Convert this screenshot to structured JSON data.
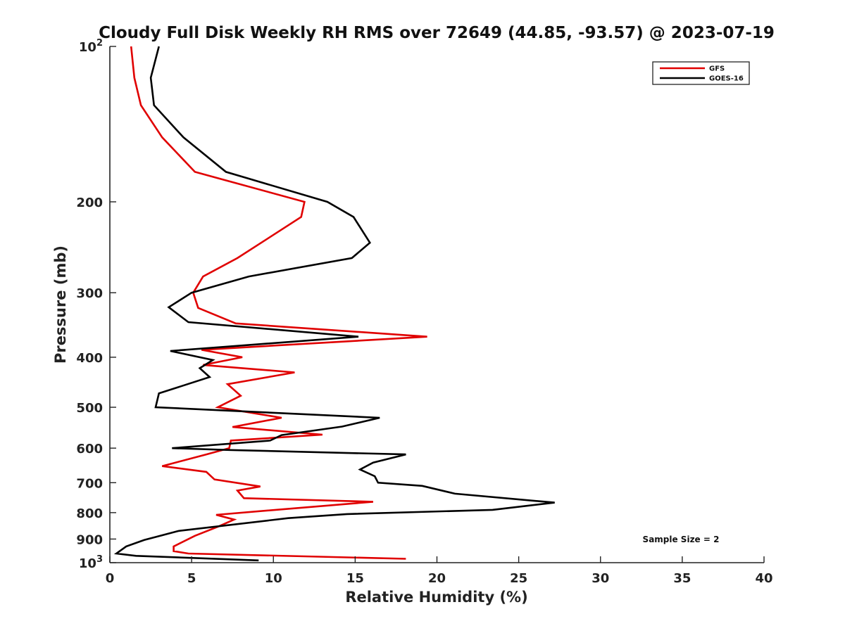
{
  "chart_data": {
    "type": "line",
    "title": "Cloudy Full Disk Weekly RH RMS over 72649 (44.85, -93.57) @ 2023-07-19",
    "xlabel": "Relative Humidity (%)",
    "ylabel": "Pressure (mb)",
    "xlim": [
      0,
      40
    ],
    "ylim": [
      100,
      1000
    ],
    "y_scale": "log",
    "y_inverted": true,
    "x_ticks": [
      "0",
      "5",
      "10",
      "15",
      "20",
      "25",
      "30",
      "35",
      "40"
    ],
    "x_tick_values": [
      0,
      5,
      10,
      15,
      20,
      25,
      30,
      35,
      40
    ],
    "y_ticks": [
      {
        "value": 100,
        "base": "10",
        "exp": "2"
      },
      {
        "value": 200,
        "label": "200"
      },
      {
        "value": 300,
        "label": "300"
      },
      {
        "value": 400,
        "label": "400"
      },
      {
        "value": 500,
        "label": "500"
      },
      {
        "value": 600,
        "label": "600"
      },
      {
        "value": 700,
        "label": "700"
      },
      {
        "value": 800,
        "label": "800"
      },
      {
        "value": 900,
        "label": "900"
      },
      {
        "value": 1000,
        "base": "10",
        "exp": "3"
      }
    ],
    "legend_position": "top-right",
    "grid": false,
    "annotation": "Sample Size = 2",
    "series": [
      {
        "name": "GFS",
        "color": "#e00000",
        "points": [
          [
            1.3,
            100
          ],
          [
            1.5,
            115
          ],
          [
            1.9,
            130
          ],
          [
            3.2,
            150
          ],
          [
            5.2,
            175
          ],
          [
            11.9,
            200
          ],
          [
            11.7,
            214
          ],
          [
            7.8,
            257
          ],
          [
            5.7,
            279
          ],
          [
            5.1,
            300
          ],
          [
            5.4,
            321
          ],
          [
            7.7,
            344
          ],
          [
            19.4,
            365
          ],
          [
            5.6,
            387
          ],
          [
            8.1,
            400
          ],
          [
            5.7,
            414
          ],
          [
            11.3,
            428
          ],
          [
            7.2,
            451
          ],
          [
            8.0,
            475
          ],
          [
            6.6,
            500
          ],
          [
            10.5,
            524
          ],
          [
            7.5,
            546
          ],
          [
            13.0,
            565
          ],
          [
            7.4,
            580
          ],
          [
            7.3,
            600
          ],
          [
            5.9,
            617
          ],
          [
            3.2,
            650
          ],
          [
            5.9,
            667
          ],
          [
            6.4,
            690
          ],
          [
            9.2,
            712
          ],
          [
            7.8,
            725
          ],
          [
            8.2,
            750
          ],
          [
            16.1,
            762
          ],
          [
            6.5,
            808
          ],
          [
            7.6,
            825
          ],
          [
            6.6,
            852
          ],
          [
            5.2,
            887
          ],
          [
            3.9,
            930
          ],
          [
            3.9,
            950
          ],
          [
            4.8,
            960
          ],
          [
            18.1,
            983
          ]
        ]
      },
      {
        "name": "GOES-16",
        "color": "#000000",
        "points": [
          [
            3.0,
            100
          ],
          [
            2.5,
            115
          ],
          [
            2.7,
            130
          ],
          [
            4.5,
            150
          ],
          [
            7.1,
            175
          ],
          [
            13.3,
            200
          ],
          [
            14.9,
            214
          ],
          [
            15.9,
            240
          ],
          [
            14.8,
            257
          ],
          [
            8.5,
            279
          ],
          [
            5.0,
            300
          ],
          [
            3.6,
            320
          ],
          [
            4.8,
            342
          ],
          [
            15.2,
            365
          ],
          [
            3.7,
            389
          ],
          [
            6.3,
            405
          ],
          [
            5.5,
            420
          ],
          [
            6.1,
            437
          ],
          [
            3.0,
            470
          ],
          [
            2.8,
            500
          ],
          [
            16.5,
            524
          ],
          [
            14.2,
            545
          ],
          [
            10.5,
            566
          ],
          [
            9.8,
            580
          ],
          [
            3.8,
            600
          ],
          [
            7.3,
            605
          ],
          [
            18.1,
            617
          ],
          [
            16.1,
            640
          ],
          [
            15.3,
            660
          ],
          [
            16.2,
            680
          ],
          [
            16.4,
            700
          ],
          [
            19.1,
            710
          ],
          [
            21.1,
            735
          ],
          [
            27.2,
            765
          ],
          [
            23.4,
            790
          ],
          [
            14.5,
            805
          ],
          [
            10.9,
            820
          ],
          [
            4.2,
            868
          ],
          [
            2.1,
            904
          ],
          [
            1.0,
            930
          ],
          [
            0.4,
            960
          ],
          [
            1.6,
            970
          ],
          [
            9.1,
            990
          ]
        ]
      }
    ]
  }
}
